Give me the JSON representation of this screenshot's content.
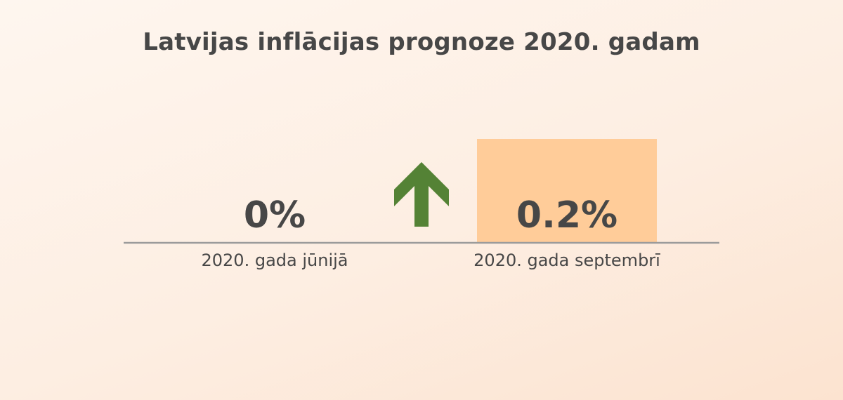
{
  "colors": {
    "bar": "#ffcc99",
    "baseline": "#9b9b9b",
    "text": "#474747",
    "arrow": "#548235"
  },
  "chart_data": {
    "type": "bar",
    "title": "Latvijas inflācijas prognoze 2020. gadam",
    "categories": [
      "2020. gada jūnijā",
      "2020. gada septembrī"
    ],
    "values": [
      0,
      0.2
    ],
    "value_labels": [
      "0%",
      "0.2%"
    ],
    "ylim": [
      0,
      0.2
    ],
    "grid": false,
    "legend": "none",
    "annotation": "arrow-up-icon",
    "xlabel": "",
    "ylabel": ""
  }
}
